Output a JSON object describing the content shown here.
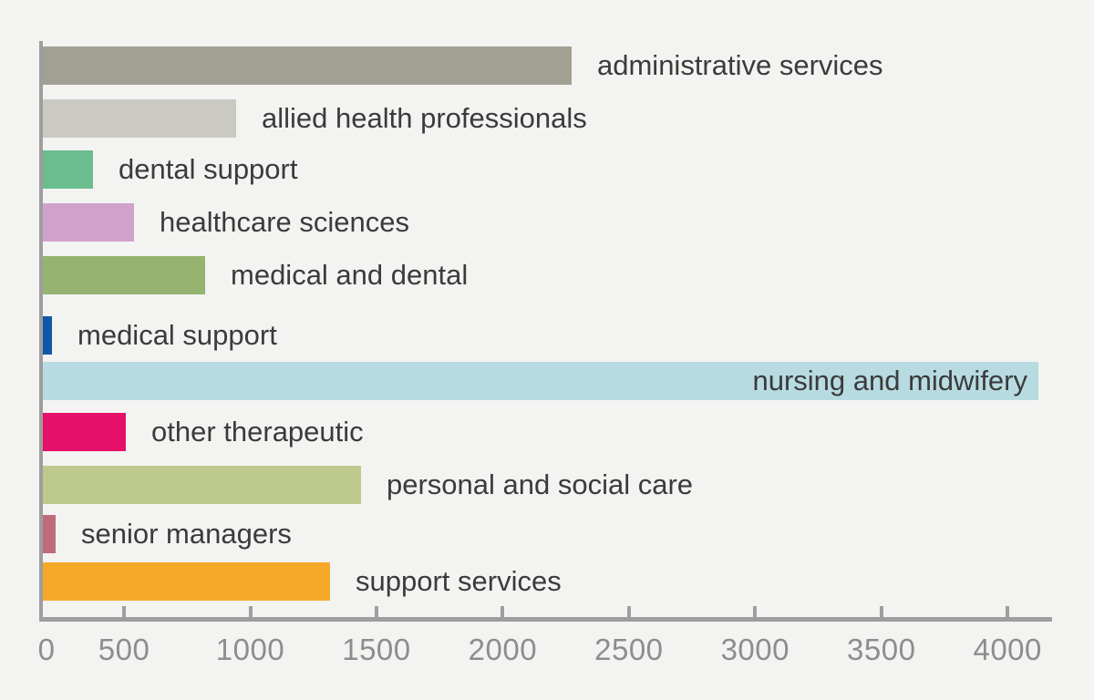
{
  "chart_data": {
    "type": "bar",
    "orientation": "horizontal",
    "title": "",
    "xlabel": "",
    "ylabel": "",
    "grid": false,
    "legend": false,
    "categories": [
      "administrative services",
      "allied health professionals",
      "dental support",
      "healthcare sciences",
      "medical and dental",
      "medical support",
      "nursing and midwifery",
      "other therapeutic",
      "personal and social care",
      "senior managers",
      "support services"
    ],
    "values": [
      2280,
      950,
      385,
      545,
      830,
      220,
      4130,
      515,
      1445,
      235,
      1325
    ],
    "bar_colors": [
      "#a2a093",
      "#cbcac2",
      "#6cbd8e",
      "#d0a2cb",
      "#94b470",
      "#0f58a8",
      "#b7dbe1",
      "#e5106a",
      "#bdca8b",
      "#c06b7a",
      "#f6a928"
    ],
    "x_tick_labels": [
      "0",
      "500",
      "1000",
      "1500",
      "2000",
      "2500",
      "3000",
      "3500",
      "4000"
    ],
    "x_tick_values": [
      0,
      500,
      1000,
      1500,
      2000,
      2500,
      3000,
      3500,
      4000
    ],
    "xlim": [
      0,
      4370
    ],
    "inside_label_category": "nursing and midwifery",
    "label_position": "right-of-bar",
    "colors": {
      "background": "#f3f3f1",
      "axis": "#9e9e9e",
      "tick_label": "#8d8d8d",
      "bar_label": "#3b3b3b"
    }
  }
}
